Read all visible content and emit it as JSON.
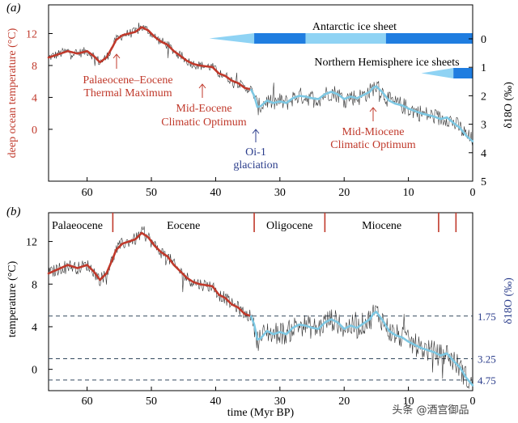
{
  "colors": {
    "warm": "#c0392b",
    "warm_text": "#c0392b",
    "cool": "#7ec8e3",
    "cool_dark": "#2c3e8c",
    "ice_dark": "#1f7de0",
    "ice_light": "#8fd3f4",
    "noise": "#111111",
    "dash": "#34495e",
    "axis": "#000000",
    "label_blue": "#2c3e8c"
  },
  "chart_data": [
    {
      "type": "line",
      "panel": "(a)",
      "xlabel": "",
      "xlim": [
        66,
        0
      ],
      "xticks": [
        60,
        50,
        40,
        30,
        20,
        10,
        0
      ],
      "ylabel_left": "deep ocean temperature (°C)",
      "ylim_left": [
        -6.5,
        15.6
      ],
      "yticks_left": [
        0,
        4,
        8,
        12
      ],
      "ylabel_right": "δ18O (‰)",
      "yticks_right": [
        0,
        1,
        2,
        3,
        4,
        5
      ],
      "series": [
        {
          "name": "smoothed deep ocean temperature (warm interval)",
          "color_key": "warm",
          "x": [
            66,
            64.5,
            63,
            61.5,
            60,
            59,
            58,
            57,
            56,
            55.5,
            54.5,
            53.5,
            52.5,
            51.5,
            50.5,
            49.5,
            48.5,
            47.5,
            46.5,
            45.5,
            44.5,
            43.5,
            42.5,
            41.5,
            40.5,
            39.5,
            38.5,
            37.5,
            36.5,
            35.5,
            34.5
          ],
          "y": [
            9.0,
            9.4,
            9.8,
            9.5,
            9.8,
            9.2,
            8.4,
            9.0,
            10.4,
            11.2,
            11.8,
            12.0,
            12.2,
            12.8,
            12.4,
            11.6,
            11.0,
            10.6,
            9.8,
            9.2,
            8.6,
            8.2,
            8.0,
            7.9,
            7.8,
            7.0,
            6.7,
            6.1,
            5.8,
            5.2,
            5.0
          ]
        },
        {
          "name": "smoothed deep ocean temperature (cool interval)",
          "color_key": "cool",
          "x": [
            34.5,
            34,
            33.5,
            33,
            32,
            31,
            30,
            29,
            28,
            27,
            26,
            25,
            24,
            23,
            22,
            21,
            20,
            19,
            18,
            17,
            16,
            15.5,
            15,
            14,
            13,
            12,
            11,
            10,
            9,
            8,
            7,
            6,
            5,
            4,
            3,
            2,
            1,
            0
          ],
          "y": [
            5.0,
            4.2,
            2.8,
            2.9,
            3.6,
            3.3,
            3.5,
            3.3,
            3.9,
            4.2,
            4.1,
            3.9,
            3.8,
            4.4,
            4.7,
            4.4,
            3.8,
            4.1,
            3.9,
            4.3,
            4.7,
            5.2,
            5.4,
            4.6,
            3.6,
            3.2,
            3.0,
            2.6,
            2.3,
            2.0,
            1.8,
            1.6,
            1.3,
            1.5,
            0.8,
            0.2,
            -0.8,
            -1.5
          ]
        }
      ],
      "annotations": [
        {
          "id": "petm",
          "lines": [
            "Palaeocene–Eocene",
            "Thermal Maximum"
          ],
          "color_key": "warm_text",
          "at_x": 55.5
        },
        {
          "id": "meco",
          "lines": [
            "Mid-Eocene",
            "Climatic Optimum"
          ],
          "color_key": "warm_text",
          "at_x": 41.5
        },
        {
          "id": "oi1",
          "lines": [
            "Oi-1",
            "glaciation"
          ],
          "color_key": "label_blue",
          "at_x": 33.5
        },
        {
          "id": "mmco",
          "lines": [
            "Mid-Miocene",
            "Climatic Optimum"
          ],
          "color_key": "warm_text",
          "at_x": 15.5
        }
      ],
      "ice_sheets": [
        {
          "label": "Antarctic ice sheet",
          "start_x": 41,
          "full_x": 34,
          "segments": [
            [
              34,
              26,
              "ice_dark"
            ],
            [
              26,
              13.5,
              "ice_light"
            ],
            [
              13.5,
              0,
              "ice_dark"
            ]
          ]
        },
        {
          "label": "Northern Hemisphere ice sheets",
          "start_x": 8,
          "full_x": 3,
          "segments": [
            [
              3,
              0,
              "ice_dark"
            ]
          ]
        }
      ]
    },
    {
      "type": "line",
      "panel": "(b)",
      "xlabel": "time (Myr BP)",
      "xlim": [
        66,
        0
      ],
      "xticks": [
        60,
        50,
        40,
        30,
        20,
        10,
        0
      ],
      "ylabel_left": "temperature (°C)",
      "ylim_left": [
        -2,
        14.7
      ],
      "yticks_left": [
        0,
        4,
        8,
        12
      ],
      "ylabel_right": "δ18O (‰)",
      "reference_lines": [
        {
          "y": 5,
          "label": "1.75"
        },
        {
          "y": 1,
          "label": "3.25"
        },
        {
          "y": -1,
          "label": "4.75"
        }
      ],
      "epochs": [
        {
          "name": "Palaeocene",
          "boundary_x": 56
        },
        {
          "name": "Eocene",
          "boundary_x": 34
        },
        {
          "name": "Oligocene",
          "boundary_x": 23
        },
        {
          "name": "Miocene",
          "boundary_x": 5.3
        }
      ],
      "extra_boundaries_x": [
        2.6
      ]
    }
  ],
  "watermark": {
    "text": "头条 @酒宫御品"
  }
}
